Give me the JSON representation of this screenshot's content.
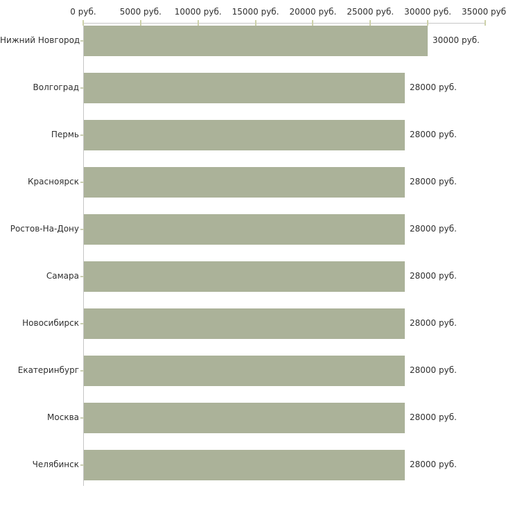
{
  "chart_data": {
    "type": "bar",
    "orientation": "horizontal",
    "title": "",
    "xlabel": "",
    "ylabel": "",
    "unit": "руб.",
    "grid": false,
    "legend": false,
    "xlim": [
      0,
      35000
    ],
    "x_ticks": [
      0,
      5000,
      10000,
      15000,
      20000,
      25000,
      30000,
      35000
    ],
    "x_tick_labels": [
      "0 руб.",
      "5000 руб.",
      "10000 руб.",
      "15000 руб.",
      "20000 руб.",
      "25000 руб.",
      "30000 руб.",
      "35000 руб."
    ],
    "categories": [
      "Нижний Новгород",
      "Волгоград",
      "Пермь",
      "Красноярск",
      "Ростов-На-Дону",
      "Самара",
      "Новосибирск",
      "Екатеринбург",
      "Москва",
      "Челябинск"
    ],
    "values": [
      30000,
      28000,
      28000,
      28000,
      28000,
      28000,
      28000,
      28000,
      28000,
      28000
    ],
    "value_labels": [
      "30000 руб.",
      "28000 руб.",
      "28000 руб.",
      "28000 руб.",
      "28000 руб.",
      "28000 руб.",
      "28000 руб.",
      "28000 руб.",
      "28000 руб.",
      "28000 руб."
    ],
    "colors": {
      "bar": "#abb299",
      "axis": "#c6c6c6",
      "tick": "#cdd1a9",
      "text": "#2f2f2f",
      "background": "#ffffff"
    }
  }
}
